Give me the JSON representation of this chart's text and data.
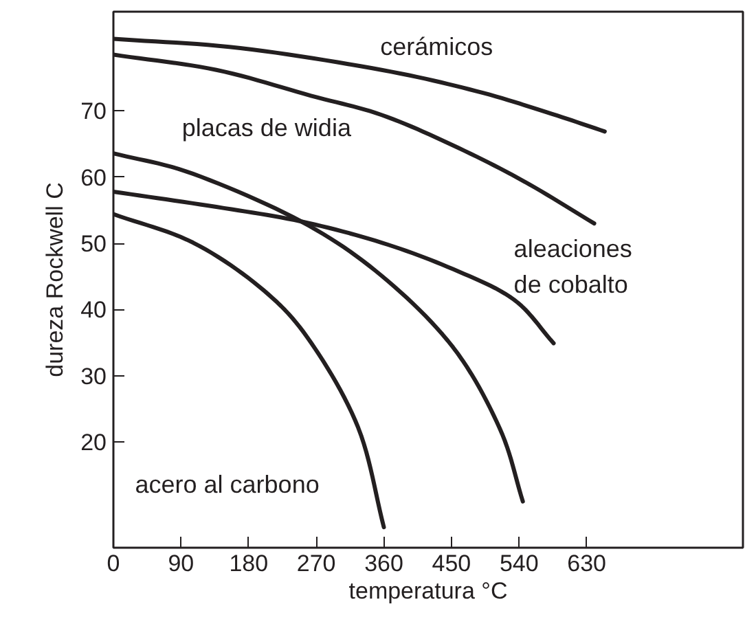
{
  "chart_data": {
    "type": "line",
    "xlabel": "temperatura °C",
    "ylabel": "dureza Rockwell C",
    "xlim": [
      0,
      838
    ],
    "ylim": [
      4,
      85
    ],
    "xticks": [
      0,
      90,
      180,
      270,
      360,
      450,
      540,
      630
    ],
    "yticks": [
      20,
      30,
      40,
      50,
      60,
      70
    ],
    "grid": false,
    "marker": "none",
    "line_style": "solid",
    "series": [
      {
        "name": "cerámicos",
        "color": "#231f20",
        "x": [
          0,
          169,
          357,
          483,
          577,
          654
        ],
        "values": [
          80.9,
          79.5,
          76.2,
          73.0,
          69.8,
          66.9
        ]
      },
      {
        "name": "placas de widia",
        "color": "#231f20",
        "x": [
          0,
          137,
          263,
          357,
          452,
          546,
          640
        ],
        "values": [
          78.5,
          76.2,
          72.3,
          69.4,
          64.8,
          59.4,
          53.0
        ]
      },
      {
        "name": "aleaciones\nde cobalto",
        "color": "#231f20",
        "x": [
          0,
          137,
          250,
          357,
          452,
          533,
          586
        ],
        "values": [
          57.8,
          55.5,
          53.3,
          50.1,
          46.1,
          41.5,
          34.9
        ]
      },
      {
        "color": "#231f20",
        "x": [
          0,
          106,
          250,
          357,
          452,
          514,
          545
        ],
        "values": [
          63.6,
          60.5,
          53.3,
          45.1,
          34.3,
          22.1,
          11.0
        ]
      },
      {
        "name": "acero al carbono",
        "color": "#231f20",
        "x": [
          0,
          106,
          200,
          263,
          326,
          360
        ],
        "values": [
          54.4,
          50.1,
          42.9,
          35.0,
          22.1,
          7.1
        ]
      }
    ]
  }
}
